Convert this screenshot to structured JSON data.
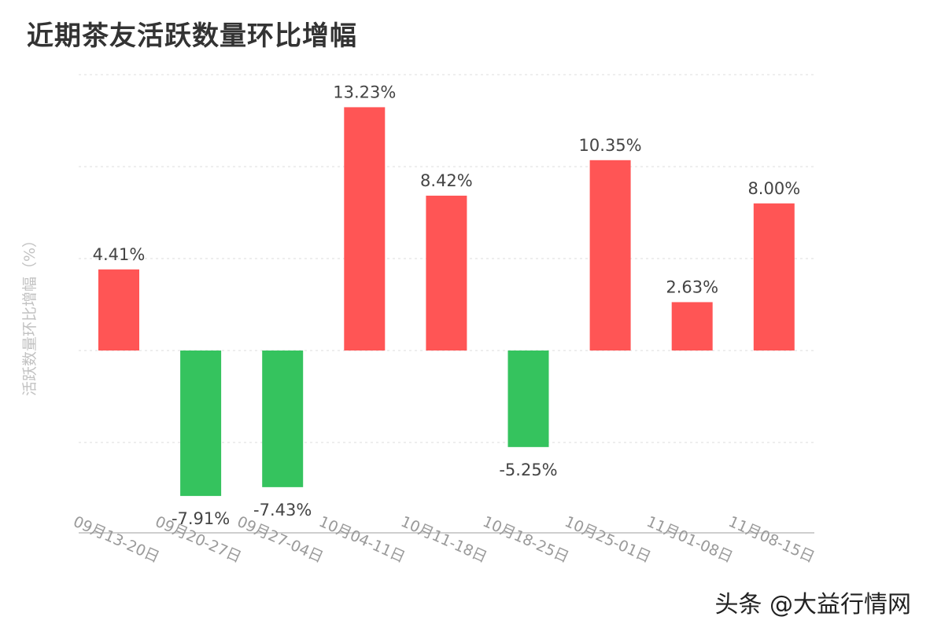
{
  "title": "近期茶友活跃数量环比增幅",
  "watermark": "头条 @大益行情网",
  "colors": {
    "positive": "#ff5555",
    "negative": "#35c35e",
    "grid": "#dcdcdc",
    "axis": "#bdbdbd",
    "label": "#444444",
    "tick": "#9a9a9a"
  },
  "chart_data": {
    "type": "bar",
    "title": "近期茶友活跃数量环比增幅",
    "xlabel": "",
    "ylabel": "活跃数量环比增幅（%）",
    "categories": [
      "09月13-20日",
      "09月20-27日",
      "09月27-04日",
      "10月04-11日",
      "10月11-18日",
      "10月18-25日",
      "10月25-01日",
      "11月01-08日",
      "11月08-15日"
    ],
    "values": [
      4.41,
      -7.91,
      -7.43,
      13.23,
      8.42,
      -5.25,
      10.35,
      2.63,
      8.0
    ],
    "data_labels": [
      "4.41%",
      "-7.91%",
      "-7.43%",
      "13.23%",
      "8.42%",
      "-5.25%",
      "10.35%",
      "2.63%",
      "8.00%"
    ],
    "ylim": [
      -10,
      15
    ],
    "gridlines": [
      -5,
      0,
      5,
      10,
      15
    ],
    "grid": true,
    "legend": "none"
  }
}
